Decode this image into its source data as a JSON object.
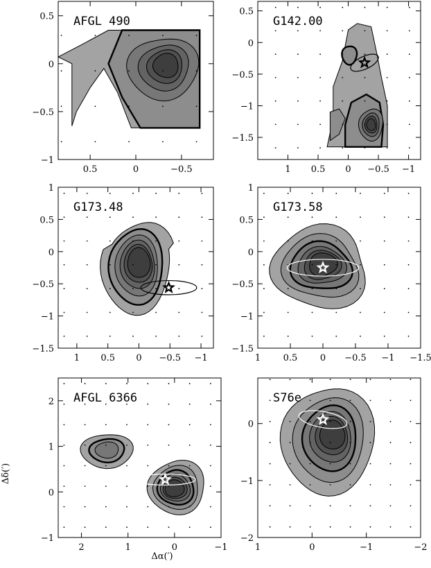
{
  "chart_data": {
    "type": "contour",
    "axis_labels": {
      "x": "Δα(′)",
      "y": "Δδ(′)"
    },
    "panels": [
      {
        "id": "afgl490",
        "title": "AFGL 490",
        "xlim": [
          0.85,
          -0.85
        ],
        "ylim": [
          -1.0,
          0.65
        ],
        "xticks": [
          {
            "v": 0.5,
            "t": "0.5"
          },
          {
            "v": 0,
            "t": "0"
          },
          {
            "v": -0.5,
            "t": "−0.5"
          }
        ],
        "yticks": [
          {
            "v": 0.5,
            "t": "0.5"
          },
          {
            "v": 0,
            "t": "0"
          },
          {
            "v": -0.5,
            "t": "−0.5"
          },
          {
            "v": -1,
            "t": "−1"
          }
        ],
        "peak": [
          -0.3,
          -0.03
        ],
        "source": null
      },
      {
        "id": "g142",
        "title": "G142.00",
        "xlim": [
          1.5,
          -1.2
        ],
        "ylim": [
          -1.85,
          0.65
        ],
        "xticks": [
          {
            "v": 1,
            "t": "1"
          },
          {
            "v": 0.5,
            "t": "0.5"
          },
          {
            "v": 0,
            "t": "0"
          },
          {
            "v": -0.5,
            "t": "−0.5"
          },
          {
            "v": -1,
            "t": "−1"
          }
        ],
        "yticks": [
          {
            "v": 0.5,
            "t": "0.5"
          },
          {
            "v": 0,
            "t": "0"
          },
          {
            "v": -0.5,
            "t": "−0.5"
          },
          {
            "v": -1,
            "t": "−1"
          },
          {
            "v": -1.5,
            "t": "−1.5"
          }
        ],
        "peak": [
          -0.4,
          -1.3
        ],
        "source": {
          "x": -0.27,
          "y": -0.32,
          "color": "black",
          "ellipse_a": 0.25,
          "ellipse_b": 0.1,
          "ellipse_angle": 25
        }
      },
      {
        "id": "g17348",
        "title": "G173.48",
        "xlim": [
          1.3,
          -1.2
        ],
        "ylim": [
          -1.5,
          1.0
        ],
        "xticks": [
          {
            "v": 1,
            "t": "1"
          },
          {
            "v": 0.5,
            "t": "0.5"
          },
          {
            "v": 0,
            "t": "0"
          },
          {
            "v": -0.5,
            "t": "−0.5"
          },
          {
            "v": -1,
            "t": "−1"
          }
        ],
        "yticks": [
          {
            "v": 1,
            "t": "1"
          },
          {
            "v": 0.5,
            "t": "0.5"
          },
          {
            "v": 0,
            "t": "0"
          },
          {
            "v": -0.5,
            "t": "−0.5"
          },
          {
            "v": -1,
            "t": "−1"
          },
          {
            "v": -1.5,
            "t": "−1.5"
          }
        ],
        "peak": [
          0.0,
          -0.15
        ],
        "source": {
          "x": -0.48,
          "y": -0.56,
          "color": "black",
          "ellipse_a": 0.45,
          "ellipse_b": 0.11,
          "ellipse_angle": 0
        }
      },
      {
        "id": "g17358",
        "title": "G173.58",
        "xlim": [
          1.0,
          -1.5
        ],
        "ylim": [
          -1.5,
          1.0
        ],
        "xticks": [
          {
            "v": 1,
            "t": "1"
          },
          {
            "v": 0.5,
            "t": "0.5"
          },
          {
            "v": 0,
            "t": "0"
          },
          {
            "v": -0.5,
            "t": "−0.5"
          },
          {
            "v": -1,
            "t": "−1"
          },
          {
            "v": -1.5,
            "t": "−1.5"
          }
        ],
        "yticks": [
          {
            "v": 1,
            "t": "1"
          },
          {
            "v": 0.5,
            "t": "0.5"
          },
          {
            "v": 0,
            "t": "0"
          },
          {
            "v": -0.5,
            "t": "−0.5"
          },
          {
            "v": -1,
            "t": "−1"
          },
          {
            "v": -1.5,
            "t": "−1.5"
          }
        ],
        "peak": [
          0.0,
          -0.2
        ],
        "source": {
          "x": 0.0,
          "y": -0.25,
          "color": "white",
          "ellipse_a": 0.55,
          "ellipse_b": 0.13,
          "ellipse_angle": 0
        }
      },
      {
        "id": "afgl6366",
        "title": "AFGL 6366",
        "xlim": [
          2.5,
          -1.0
        ],
        "ylim": [
          -1.0,
          2.5
        ],
        "xticks": [
          {
            "v": 2,
            "t": "2"
          },
          {
            "v": 1,
            "t": "1"
          },
          {
            "v": 0,
            "t": "0"
          },
          {
            "v": -1,
            "t": "−1"
          }
        ],
        "yticks": [
          {
            "v": 2,
            "t": "2"
          },
          {
            "v": 1,
            "t": "1"
          },
          {
            "v": 0,
            "t": "0"
          },
          {
            "v": -1,
            "t": "−1"
          }
        ],
        "peak": [
          0.05,
          0.1
        ],
        "source": {
          "x": 0.2,
          "y": 0.27,
          "color": "white",
          "ellipse_a": 0.65,
          "ellipse_b": 0.12,
          "ellipse_angle": 0
        }
      },
      {
        "id": "s76e",
        "title": "S76e",
        "xlim": [
          1.0,
          -2.0
        ],
        "ylim": [
          -2.0,
          0.8
        ],
        "xticks": [
          {
            "v": 1,
            "t": "1"
          },
          {
            "v": 0,
            "t": "0"
          },
          {
            "v": -1,
            "t": "−1"
          },
          {
            "v": -2,
            "t": "−2"
          }
        ],
        "yticks": [
          {
            "v": 0,
            "t": "0"
          },
          {
            "v": -1,
            "t": "−1"
          },
          {
            "v": -2,
            "t": "−2"
          }
        ],
        "peak": [
          -0.35,
          -0.2
        ],
        "source": {
          "x": -0.2,
          "y": 0.07,
          "color": "white",
          "ellipse_a": 0.45,
          "ellipse_b": 0.14,
          "ellipse_angle": -10
        }
      }
    ]
  }
}
